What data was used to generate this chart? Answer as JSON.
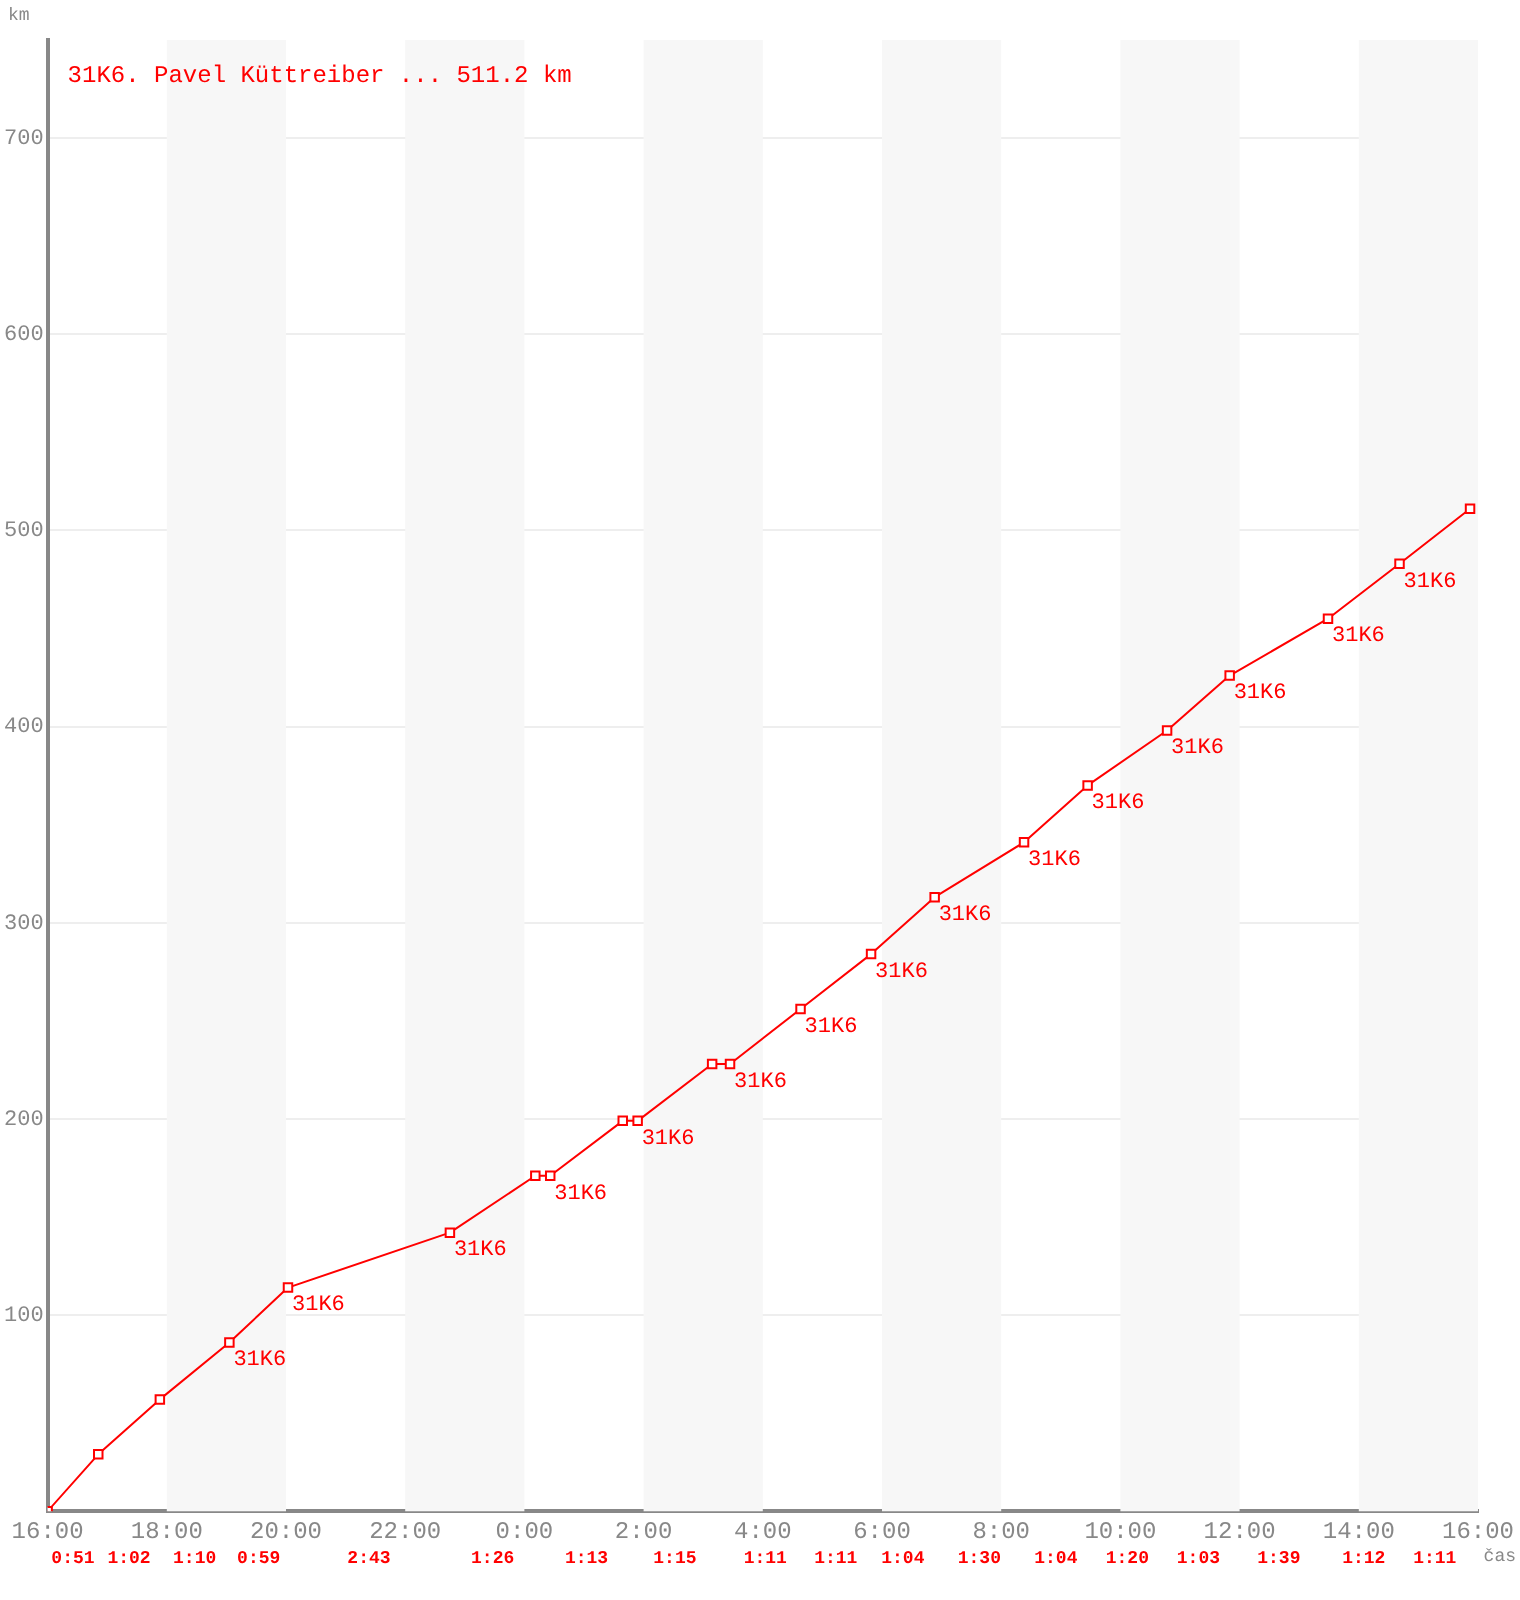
{
  "chart_data": {
    "type": "line",
    "xlabel": "čas",
    "ylabel": "km",
    "x": [
      "2000-01-01T16:00",
      "2000-01-01T16:51",
      "2000-01-01T17:53",
      "2000-01-01T19:03",
      "2000-01-01T20:02",
      "2000-01-01T22:45",
      "2000-01-02T00:11",
      "2000-01-02T00:26",
      "2000-01-02T01:39",
      "2000-01-02T01:54",
      "2000-01-02T03:09",
      "2000-01-02T03:27",
      "2000-01-02T04:38",
      "2000-01-02T05:49",
      "2000-01-02T06:53",
      "2000-01-02T08:23",
      "2000-01-02T09:27",
      "2000-01-02T10:47",
      "2000-01-02T11:50",
      "2000-01-02T13:29",
      "2000-01-02T14:41",
      "2000-01-02T15:52"
    ],
    "series": [
      {
        "name": "31K6. Pavel Küttreiber ... 511.2 km",
        "color": "#ff0000",
        "values": [
          0,
          29,
          57,
          86,
          114,
          142,
          171,
          171,
          199,
          199,
          228,
          228,
          256,
          284,
          313,
          341,
          370,
          398,
          426,
          455,
          483,
          511
        ]
      }
    ],
    "xlim": [
      "2000-01-01T16:00",
      "2000-01-02T16:00"
    ],
    "xticks": [
      {
        "value": "2000-01-01T16:00",
        "label": "16:00"
      },
      {
        "value": "2000-01-01T18:00",
        "label": "18:00"
      },
      {
        "value": "2000-01-01T20:00",
        "label": "20:00"
      },
      {
        "value": "2000-01-01T22:00",
        "label": "22:00"
      },
      {
        "value": "2000-01-02T00:00",
        "label": "0:00"
      },
      {
        "value": "2000-01-02T02:00",
        "label": "2:00"
      },
      {
        "value": "2000-01-02T04:00",
        "label": "4:00"
      },
      {
        "value": "2000-01-02T06:00",
        "label": "6:00"
      },
      {
        "value": "2000-01-02T08:00",
        "label": "8:00"
      },
      {
        "value": "2000-01-02T10:00",
        "label": "10:00"
      },
      {
        "value": "2000-01-02T12:00",
        "label": "12:00"
      },
      {
        "value": "2000-01-02T14:00",
        "label": "14:00"
      },
      {
        "value": "2000-01-02T16:00",
        "label": "16:00"
      }
    ],
    "ylim": [
      0,
      750
    ],
    "yticks": [
      {
        "value": 0,
        "label": null
      },
      100,
      200,
      300,
      400,
      500,
      600,
      700
    ],
    "grid": "y",
    "legend": "top left",
    "marker": "square",
    "line_style": "solid",
    "bands": [
      {
        "axis": "x",
        "from": "2000-01-01T18:00",
        "to": "2000-01-01T20:00",
        "color": "#f7f7f7"
      },
      {
        "axis": "x",
        "from": "2000-01-01T22:00",
        "to": "2000-01-02T00:00",
        "color": "#f7f7f7"
      },
      {
        "axis": "x",
        "from": "2000-01-02T02:00",
        "to": "2000-01-02T04:00",
        "color": "#f7f7f7"
      },
      {
        "axis": "x",
        "from": "2000-01-02T06:00",
        "to": "2000-01-02T08:00",
        "color": "#f7f7f7"
      },
      {
        "axis": "x",
        "from": "2000-01-02T10:00",
        "to": "2000-01-02T12:00",
        "color": "#f7f7f7"
      },
      {
        "axis": "x",
        "from": "2000-01-02T14:00",
        "to": "2000-01-02T16:00",
        "color": "#f7f7f7"
      }
    ],
    "annotations": [
      {
        "text": "31K6",
        "x": "2000-01-01T19:03",
        "y": 86
      },
      {
        "text": "31K6",
        "x": "2000-01-01T20:02",
        "y": 114
      },
      {
        "text": "31K6",
        "x": "2000-01-01T22:45",
        "y": 142
      },
      {
        "text": "31K6",
        "x": "2000-01-02T00:26",
        "y": 171
      },
      {
        "text": "31K6",
        "x": "2000-01-02T01:54",
        "y": 199
      },
      {
        "text": "31K6",
        "x": "2000-01-02T03:27",
        "y": 228
      },
      {
        "text": "31K6",
        "x": "2000-01-02T04:38",
        "y": 256
      },
      {
        "text": "31K6",
        "x": "2000-01-02T05:49",
        "y": 284
      },
      {
        "text": "31K6",
        "x": "2000-01-02T06:53",
        "y": 313
      },
      {
        "text": "31K6",
        "x": "2000-01-02T08:23",
        "y": 341
      },
      {
        "text": "31K6",
        "x": "2000-01-02T09:27",
        "y": 370
      },
      {
        "text": "31K6",
        "x": "2000-01-02T10:47",
        "y": 398
      },
      {
        "text": "31K6",
        "x": "2000-01-02T11:50",
        "y": 426
      },
      {
        "text": "31K6",
        "x": "2000-01-02T13:29",
        "y": 455
      },
      {
        "text": "31K6",
        "x": "2000-01-02T14:41",
        "y": 483
      },
      "0:51",
      "1:02",
      "1:10",
      "0:59",
      "2:43",
      "1:26",
      "1:13",
      "1:15",
      "1:11",
      "1:11",
      "1:04",
      "1:30",
      "1:04",
      "1:20",
      "1:03",
      "1:39",
      "1:12",
      "1:11"
    ]
  }
}
